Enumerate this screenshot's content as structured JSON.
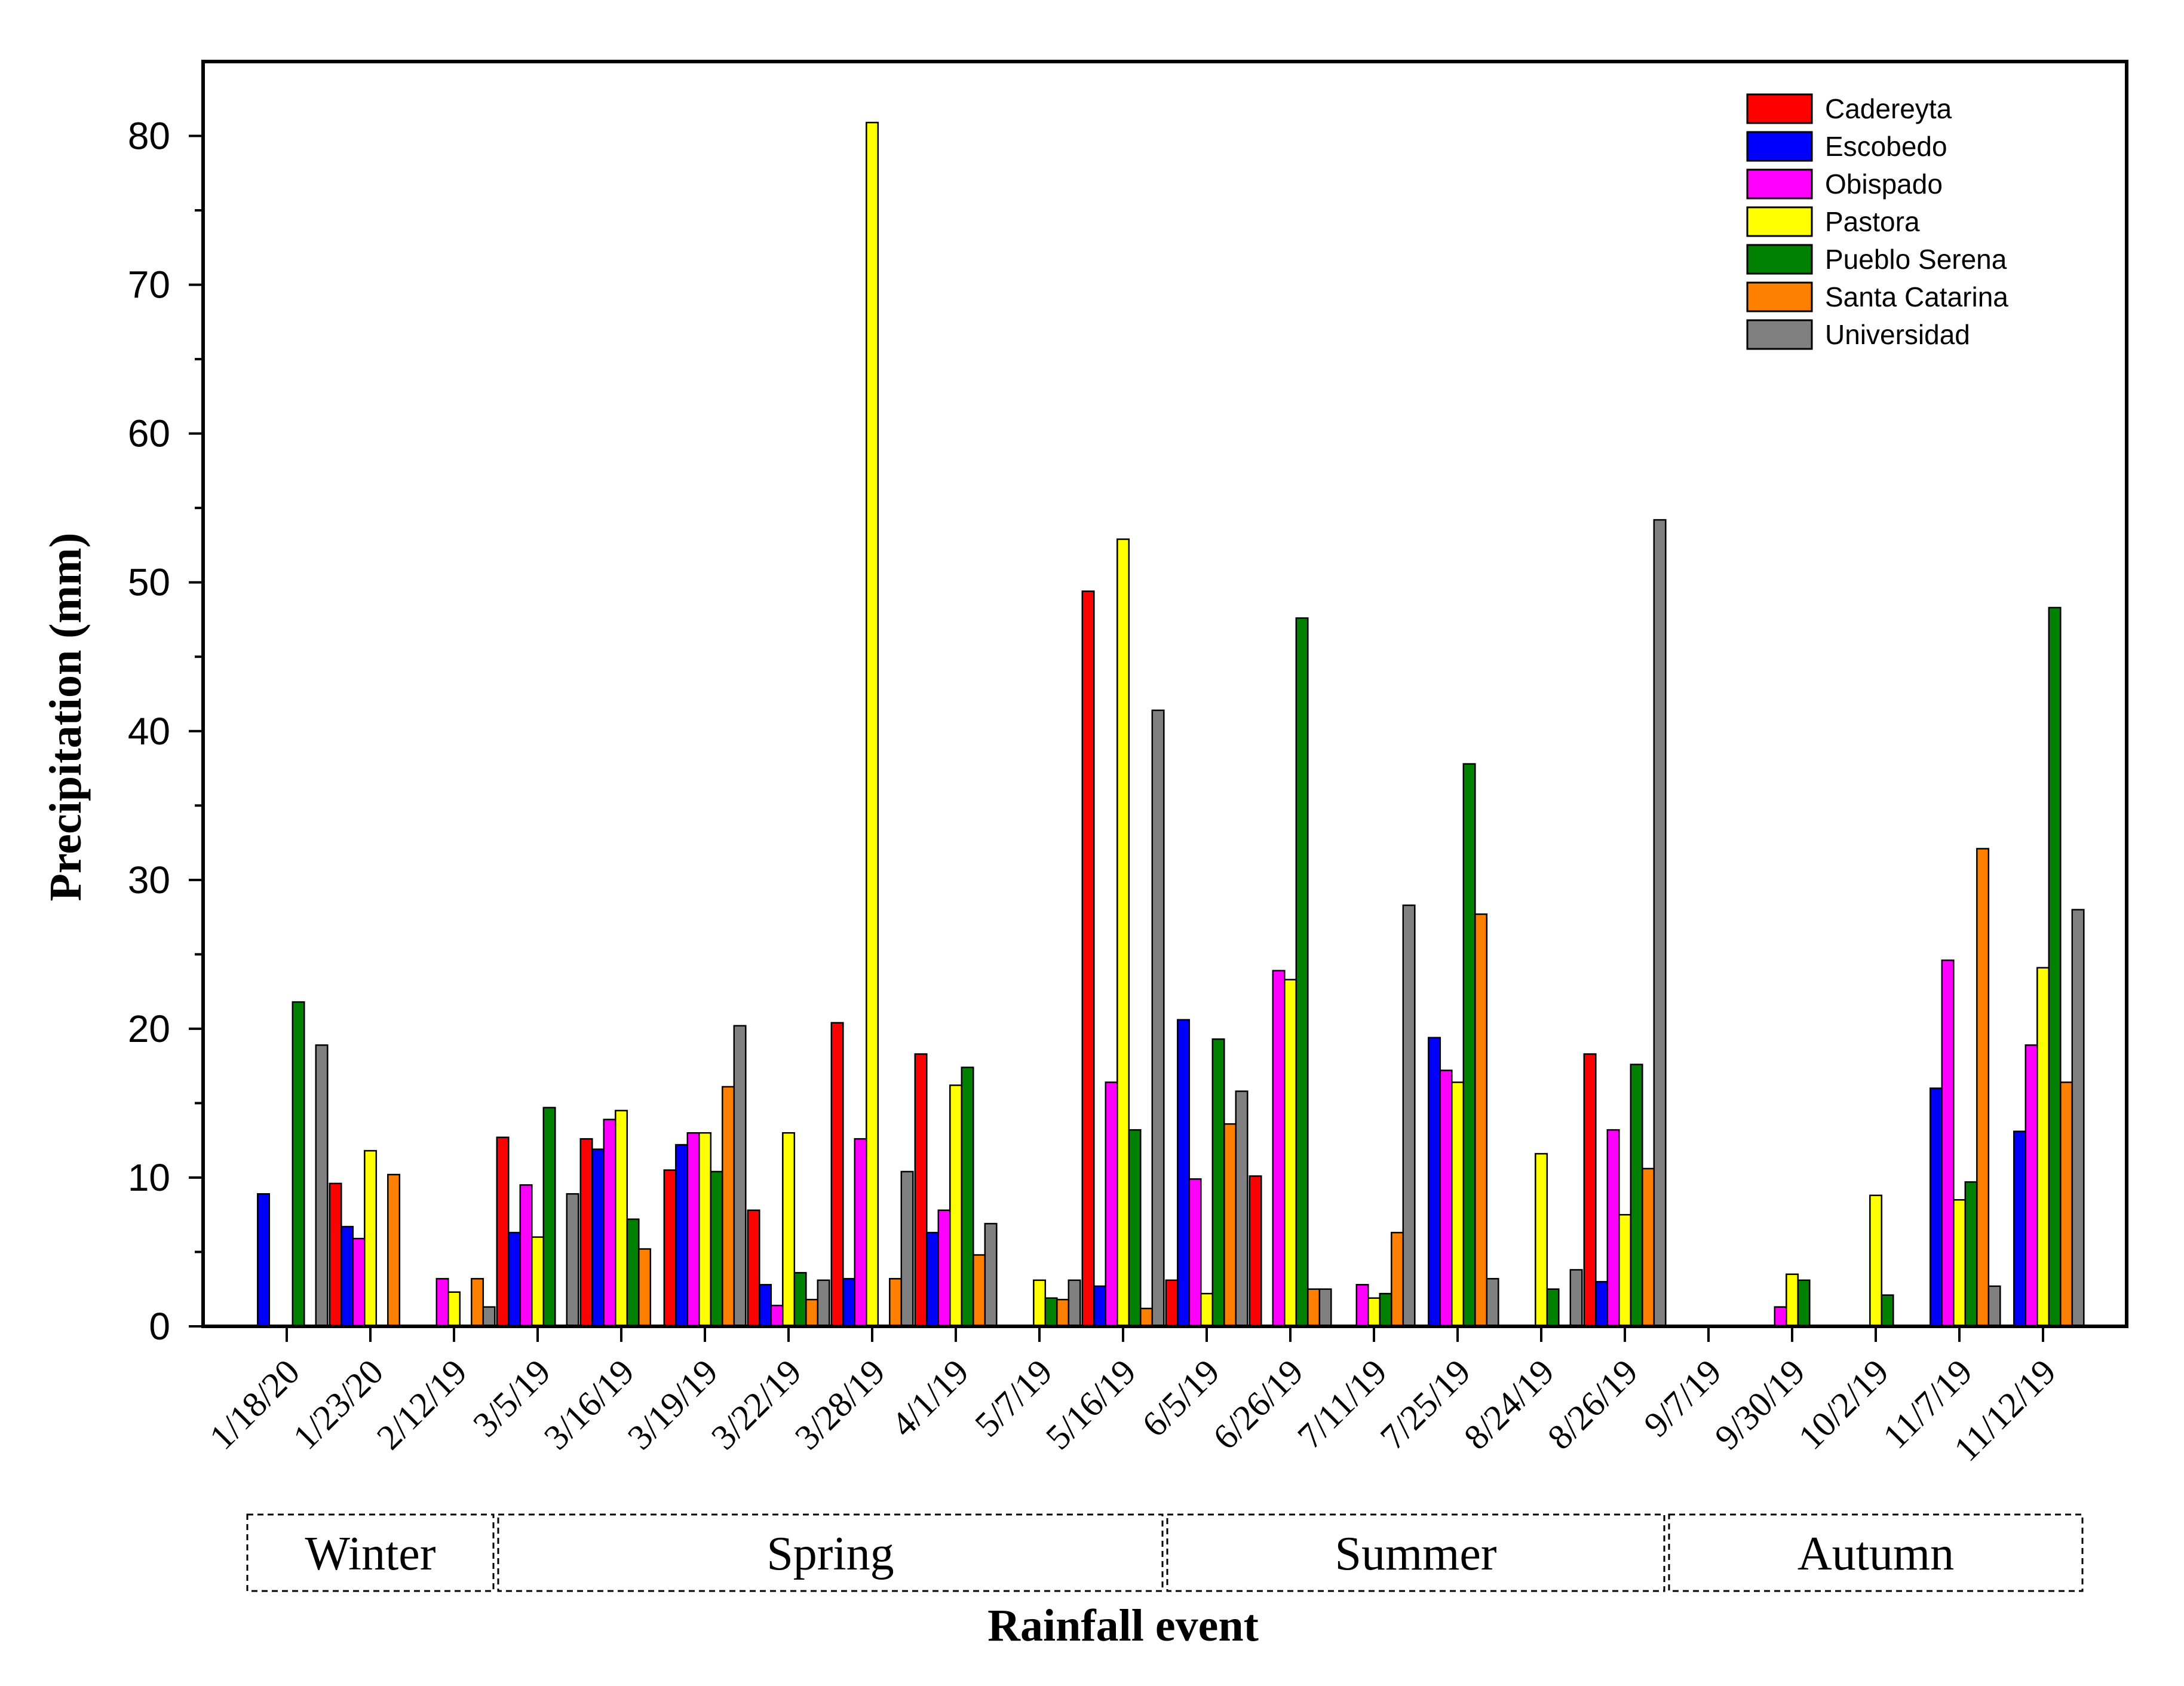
{
  "chart_data": {
    "type": "bar",
    "title": "",
    "xlabel": "Rainfall event",
    "ylabel": "Precipitation (mm)",
    "ylim": [
      0,
      85
    ],
    "yticks": [
      0,
      10,
      20,
      30,
      40,
      50,
      60,
      70,
      80
    ],
    "legend_position": "top-right",
    "categories": [
      "1/18/20",
      "1/23/20",
      "2/12/19",
      "3/5/19",
      "3/16/19",
      "3/19/19",
      "3/22/19",
      "3/28/19",
      "4/1/19",
      "5/7/19",
      "5/16/19",
      "6/5/19",
      "6/26/19",
      "7/11/19",
      "7/25/19",
      "8/24/19",
      "8/26/19",
      "9/7/19",
      "9/30/19",
      "10/2/19",
      "11/7/19",
      "11/12/19"
    ],
    "series": [
      {
        "name": "Cadereyta",
        "color": "#ff0000",
        "values": [
          0,
          9.6,
          0,
          12.7,
          12.6,
          10.5,
          7.8,
          20.4,
          18.3,
          0,
          49.4,
          3.1,
          10.1,
          0,
          0,
          0,
          18.3,
          0,
          0,
          0,
          0,
          0
        ]
      },
      {
        "name": "Escobedo",
        "color": "#0000ff",
        "values": [
          8.9,
          6.7,
          0,
          6.3,
          11.9,
          12.2,
          2.8,
          3.2,
          6.3,
          0,
          2.7,
          20.6,
          0,
          0,
          19.4,
          0,
          3.0,
          0,
          0,
          0,
          16.0,
          13.1
        ]
      },
      {
        "name": "Obispado",
        "color": "#ff00ff",
        "values": [
          0,
          5.9,
          3.2,
          9.5,
          13.9,
          13.0,
          1.4,
          12.6,
          7.8,
          0,
          16.4,
          9.9,
          23.9,
          2.8,
          17.2,
          0,
          13.2,
          0,
          1.3,
          0,
          24.6,
          18.9
        ]
      },
      {
        "name": "Pastora",
        "color": "#ffff00",
        "values": [
          0,
          11.8,
          2.3,
          6.0,
          14.5,
          13.0,
          13.0,
          80.9,
          16.2,
          3.1,
          52.9,
          2.2,
          23.3,
          1.9,
          16.4,
          11.6,
          7.5,
          0,
          3.5,
          8.8,
          8.5,
          24.1
        ]
      },
      {
        "name": "Pueblo Serena",
        "color": "#008000",
        "values": [
          21.8,
          0,
          0,
          14.7,
          7.2,
          10.4,
          3.6,
          0,
          17.4,
          1.9,
          13.2,
          19.3,
          47.6,
          2.2,
          37.8,
          2.5,
          17.6,
          0,
          3.1,
          2.1,
          9.7,
          48.3
        ]
      },
      {
        "name": "Santa Catarina",
        "color": "#ff8000",
        "values": [
          0,
          10.2,
          3.2,
          0,
          5.2,
          16.1,
          1.8,
          3.2,
          4.8,
          1.8,
          1.2,
          13.6,
          2.5,
          6.3,
          27.7,
          0,
          10.6,
          0,
          0,
          0,
          32.1,
          16.4
        ]
      },
      {
        "name": "Universidad",
        "color": "#808080",
        "values": [
          18.9,
          0,
          1.3,
          8.9,
          0,
          20.2,
          3.1,
          10.4,
          6.9,
          3.1,
          41.4,
          15.8,
          2.5,
          28.3,
          3.2,
          3.8,
          54.2,
          0,
          0,
          0,
          2.7,
          28.0
        ]
      }
    ],
    "seasons": [
      {
        "label": "Winter",
        "first": 0,
        "last": 2
      },
      {
        "label": "Spring",
        "first": 3,
        "last": 10
      },
      {
        "label": "Summer",
        "first": 11,
        "last": 16
      },
      {
        "label": "Autumn",
        "first": 17,
        "last": 21
      }
    ]
  }
}
